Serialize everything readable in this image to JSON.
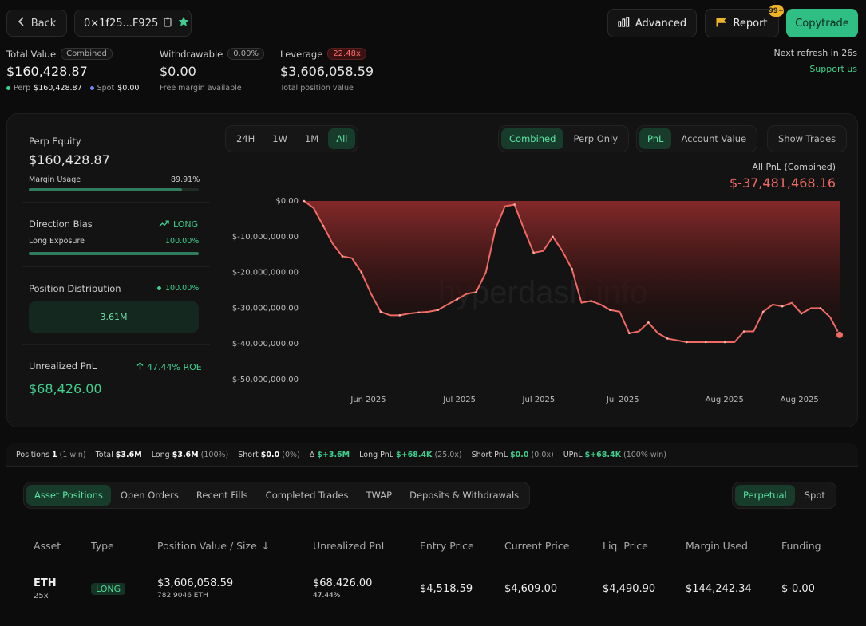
{
  "header": {
    "back_label": "Back",
    "address": "0×1f25...F925",
    "advanced_label": "Advanced",
    "report_label": "Report",
    "report_badge": "99+",
    "copytrade_label": "Copytrade",
    "refresh_text": "Next refresh in 26s",
    "support_label": "Support us"
  },
  "summary": {
    "total_value_label": "Total Value",
    "total_value_badge": "Combined",
    "total_value": "$160,428.87",
    "perp_label": "Perp",
    "perp_value": "$160,428.87",
    "spot_label": "Spot",
    "spot_value": "$0.00",
    "withdrawable_label": "Withdrawable",
    "withdrawable_badge": "0.00%",
    "withdrawable_value": "$0.00",
    "withdrawable_sub": "Free margin available",
    "leverage_label": "Leverage",
    "leverage_badge": "22.48x",
    "leverage_value": "$3,606,058.59",
    "leverage_sub": "Total position value"
  },
  "left_panel": {
    "perp_equity_label": "Perp Equity",
    "perp_equity_value": "$160,428.87",
    "margin_usage_label": "Margin Usage",
    "margin_usage_value": "89.91%",
    "margin_usage_fraction": 0.8991,
    "direction_bias_label": "Direction Bias",
    "direction_bias_value": "LONG",
    "long_exposure_label": "Long Exposure",
    "long_exposure_value": "100.00%",
    "long_exposure_fraction": 1.0,
    "position_distribution_label": "Position Distribution",
    "position_distribution_value": "100.00%",
    "position_distribution_bar": "3.61M",
    "unrealized_pnl_label": "Unrealized PnL",
    "roe_value": "47.44% ROE",
    "unrealized_pnl_value": "$68,426.00"
  },
  "chart_controls": {
    "ranges": [
      "24H",
      "1W",
      "1M",
      "All"
    ],
    "active_range": "All",
    "mode_options": [
      "Combined",
      "Perp Only"
    ],
    "active_mode": "Combined",
    "metric_options": [
      "PnL",
      "Account Value"
    ],
    "active_metric": "PnL",
    "show_trades_label": "Show Trades",
    "pnl_title": "All PnL (Combined)",
    "pnl_value": "$-37,481,468.16",
    "watermark": "hyperdash.info"
  },
  "chart_data": {
    "type": "area",
    "y_ticks": [
      "$0.00",
      "$-10,000,000.00",
      "$-20,000,000.00",
      "$-30,000,000.00",
      "$-40,000,000.00",
      "$-50,000,000.00"
    ],
    "x_ticks": [
      "Jun 2025",
      "Jul 2025",
      "Jul 2025",
      "Jul 2025",
      "Aug 2025",
      "Aug 2025"
    ],
    "ylim": [
      -50000000,
      0
    ],
    "series": [
      {
        "values": [
          0,
          -2000000,
          -7000000,
          -12000000,
          -15500000,
          -16000000,
          -20000000,
          -26000000,
          -31000000,
          -32000000,
          -32000000,
          -31500000,
          -31200000,
          -31000000,
          -30500000,
          -29000000,
          -27500000,
          -26000000,
          -25500000,
          -20000000,
          -8000000,
          -1500000,
          -1000000,
          -8000000,
          -14500000,
          -14000000,
          -10000000,
          -14000000,
          -19000000,
          -28500000,
          -28000000,
          -29000000,
          -30500000,
          -31000000,
          -37000000,
          -36500000,
          -34000000,
          -37000000,
          -38500000,
          -39000000,
          -39500000,
          -39500000,
          -39500000,
          -39500000,
          -39500000,
          -39500000,
          -36500000,
          -36500000,
          -31000000,
          -29000000,
          -29500000,
          -28500000,
          -31500000,
          -30000000,
          -30000000,
          -32500000,
          -37481468
        ]
      }
    ],
    "highlight_color": "#f06a63"
  },
  "stats_row": {
    "positions_label": "Positions",
    "positions_value": "1",
    "positions_sub": "(1 win)",
    "total_label": "Total",
    "total_value": "$3.6M",
    "long_label": "Long",
    "long_value": "$3.6M",
    "long_sub": "(100%)",
    "short_label": "Short",
    "short_value": "$0.0",
    "short_sub": "(0%)",
    "delta_label": "Δ",
    "delta_value": "$+3.6M",
    "long_pnl_label": "Long PnL",
    "long_pnl_value": "$+68.4K",
    "long_pnl_sub": "(25.0x)",
    "short_pnl_label": "Short PnL",
    "short_pnl_value": "$0.0",
    "short_pnl_sub": "(0.0x)",
    "upnl_label": "UPnL",
    "upnl_value": "$+68.4K",
    "upnl_sub": "(100% win)"
  },
  "tabs": {
    "items": [
      "Asset Positions",
      "Open Orders",
      "Recent Fills",
      "Completed Trades",
      "TWAP",
      "Deposits & Withdrawals"
    ],
    "active": "Asset Positions",
    "market_options": [
      "Perpetual",
      "Spot"
    ],
    "active_market": "Perpetual"
  },
  "table": {
    "headers": [
      "Asset",
      "Type",
      "Position Value / Size",
      "Unrealized PnL",
      "Entry Price",
      "Current Price",
      "Liq. Price",
      "Margin Used",
      "Funding"
    ],
    "sort_indicator": "↓",
    "rows": [
      {
        "asset": "ETH",
        "leverage": "25x",
        "type": "LONG",
        "position_value": "$3,606,058.59",
        "position_size": "782.9046 ETH",
        "unrealized_pnl": "$68,426.00",
        "unrealized_pct": "47.44%",
        "entry_price": "$4,518.59",
        "current_price": "$4,609.00",
        "liq_price": "$4,490.90",
        "margin_used": "$144,242.34",
        "funding": "$-0.00"
      }
    ]
  },
  "colors": {
    "accent_green": "#3fd08f",
    "accent_red": "#f06a63",
    "copytrade_bg": "#2fbf85",
    "report_badge_bg": "#f0b429"
  }
}
